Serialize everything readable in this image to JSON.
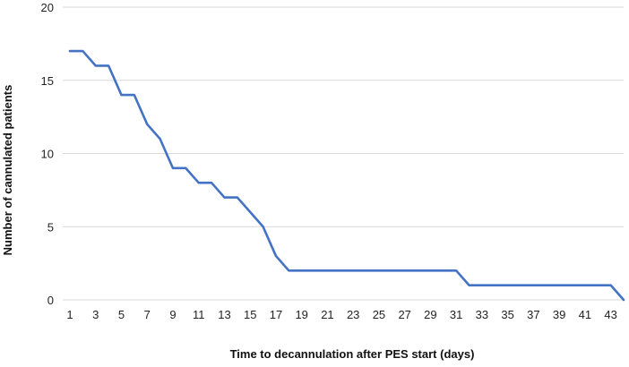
{
  "chart_data": {
    "type": "line",
    "title": "",
    "xlabel": "Time to decannulation after PES start (days)",
    "ylabel": "Number of cannulated patients",
    "x": [
      1,
      2,
      3,
      4,
      5,
      6,
      7,
      8,
      9,
      10,
      11,
      12,
      13,
      14,
      15,
      16,
      17,
      18,
      19,
      20,
      21,
      22,
      23,
      24,
      25,
      26,
      27,
      28,
      29,
      30,
      31,
      32,
      33,
      34,
      35,
      36,
      37,
      38,
      39,
      40,
      41,
      42,
      43,
      44
    ],
    "series": [
      {
        "name": "",
        "color": "#4472c4",
        "values": [
          17,
          17,
          16,
          16,
          14,
          14,
          12,
          11,
          9,
          9,
          8,
          8,
          7,
          7,
          6,
          5,
          3,
          2,
          2,
          2,
          2,
          2,
          2,
          2,
          2,
          2,
          2,
          2,
          2,
          2,
          2,
          1,
          1,
          1,
          1,
          1,
          1,
          1,
          1,
          1,
          1,
          1,
          1,
          0
        ]
      }
    ],
    "xticks": [
      1,
      3,
      5,
      7,
      9,
      11,
      13,
      15,
      17,
      19,
      21,
      23,
      25,
      27,
      29,
      31,
      33,
      35,
      37,
      39,
      41,
      43
    ],
    "yticks": [
      0,
      5,
      10,
      15,
      20
    ],
    "xlim": [
      1,
      44
    ],
    "ylim": [
      0,
      20
    ],
    "grid": "horizontal",
    "legend": "none"
  }
}
